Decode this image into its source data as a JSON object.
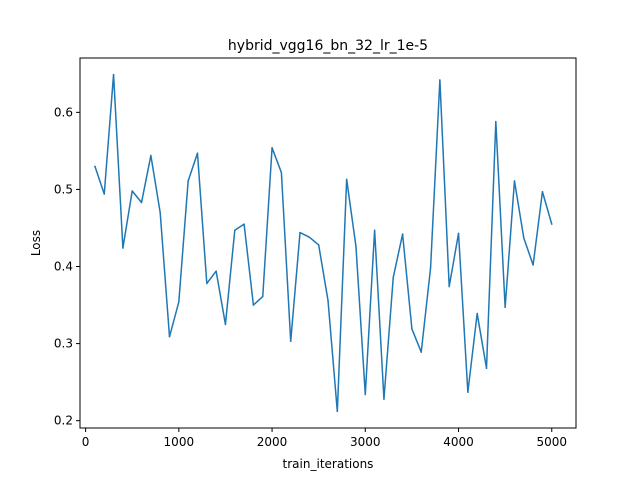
{
  "chart_data": {
    "type": "line",
    "title": "hybrid_vgg16_bn_32_lr_1e-5",
    "xlabel": "train_iterations",
    "ylabel": "Loss",
    "xlim": [
      -60,
      5260
    ],
    "ylim": [
      0.1905,
      0.6705
    ],
    "x_ticks": [
      0,
      1000,
      2000,
      3000,
      4000,
      5000
    ],
    "y_ticks": [
      0.2,
      0.3,
      0.4,
      0.5,
      0.6
    ],
    "grid": false,
    "legend": "none",
    "series": [
      {
        "color": "#1f77b4",
        "x": [
          100,
          200,
          300,
          400,
          500,
          600,
          700,
          800,
          900,
          1000,
          1100,
          1200,
          1300,
          1400,
          1500,
          1600,
          1700,
          1800,
          1900,
          2000,
          2100,
          2200,
          2300,
          2400,
          2500,
          2600,
          2700,
          2800,
          2900,
          3000,
          3100,
          3200,
          3300,
          3400,
          3500,
          3600,
          3700,
          3800,
          3900,
          4000,
          4100,
          4200,
          4300,
          4400,
          4500,
          4600,
          4700,
          4800,
          4900,
          5000
        ],
        "values": [
          0.53,
          0.494,
          0.649,
          0.424,
          0.498,
          0.483,
          0.544,
          0.47,
          0.309,
          0.354,
          0.511,
          0.547,
          0.378,
          0.394,
          0.325,
          0.447,
          0.455,
          0.35,
          0.361,
          0.554,
          0.522,
          0.303,
          0.444,
          0.438,
          0.428,
          0.356,
          0.212,
          0.513,
          0.426,
          0.234,
          0.447,
          0.228,
          0.386,
          0.442,
          0.319,
          0.289,
          0.398,
          0.642,
          0.374,
          0.443,
          0.237,
          0.339,
          0.268,
          0.588,
          0.347,
          0.511,
          0.437,
          0.402,
          0.497,
          0.455
        ]
      }
    ]
  }
}
